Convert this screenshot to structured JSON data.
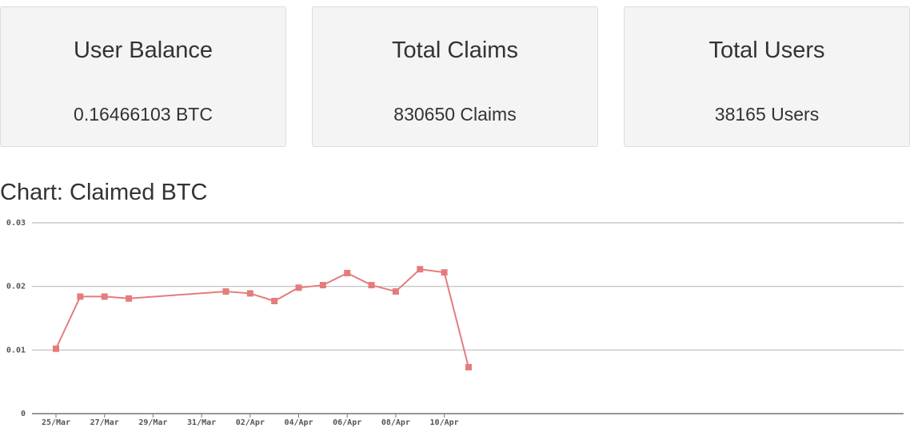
{
  "cards": [
    {
      "title": "User Balance",
      "value": "0.16466103 BTC"
    },
    {
      "title": "Total Claims",
      "value": "830650 Claims"
    },
    {
      "title": "Total Users",
      "value": "38165 Users"
    }
  ],
  "chart_heading": "Chart: Claimed BTC",
  "colors": {
    "line": "#e57c7c",
    "grid": "#bdbdbd",
    "axis": "#777777",
    "card_bg": "#f4f4f4"
  },
  "chart_data": {
    "type": "line",
    "title": "",
    "xlabel": "",
    "ylabel": "",
    "ylim": [
      0,
      0.03
    ],
    "y_ticks": [
      "0",
      "0.01",
      "0.02",
      "0.03"
    ],
    "x_ticks": [
      "25/Mar",
      "27/Mar",
      "29/Mar",
      "31/Mar",
      "02/Apr",
      "04/Apr",
      "06/Apr",
      "08/Apr",
      "10/Apr"
    ],
    "grid": true,
    "series": [
      {
        "name": "",
        "x": [
          "25/Mar",
          "26/Mar",
          "27/Mar",
          "28/Mar",
          "01/Apr",
          "02/Apr",
          "03/Apr",
          "04/Apr",
          "05/Apr",
          "06/Apr",
          "07/Apr",
          "08/Apr",
          "09/Apr",
          "10/Apr",
          "11/Apr"
        ],
        "values": [
          0.0102,
          0.0184,
          0.0184,
          0.0181,
          0.0192,
          0.0189,
          0.0177,
          0.0198,
          0.0202,
          0.0221,
          0.0202,
          0.0192,
          0.0227,
          0.0222,
          0.0073
        ]
      }
    ]
  }
}
